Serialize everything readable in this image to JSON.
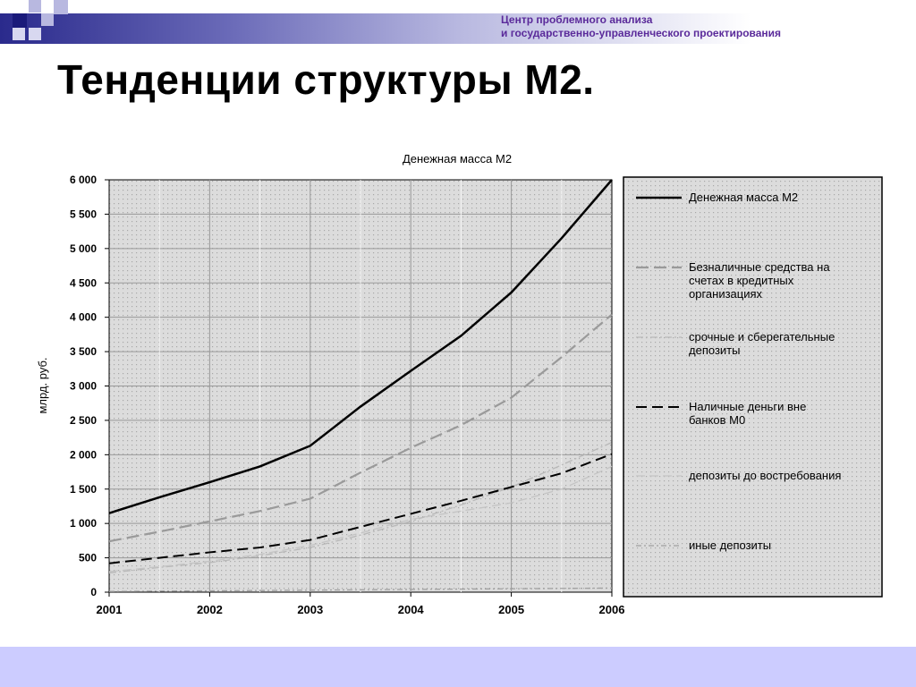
{
  "header": {
    "org_line1": "Центр проблемного анализа",
    "org_line2": "и государственно-управленческого проектирования"
  },
  "slide_title": "Тенденции структуры М2.",
  "colors": {
    "accent": "#2a2a8c",
    "footer": "#ccccff",
    "org_text": "#5a2a9a"
  },
  "chart_data": {
    "type": "line",
    "title": "Денежная масса М2",
    "ylabel": "млрд. руб.",
    "xlabel": "",
    "x": [
      2001,
      2001.5,
      2002,
      2002.5,
      2003,
      2003.5,
      2004,
      2004.5,
      2005,
      2005.5,
      2006
    ],
    "xticks": [
      "2001",
      "2002",
      "2003",
      "2004",
      "2005",
      "2006"
    ],
    "yticks": [
      "0",
      "500",
      "1 000",
      "1 500",
      "2 000",
      "2 500",
      "3 000",
      "3 500",
      "4 000",
      "4 500",
      "5 000",
      "5 500",
      "6 000"
    ],
    "ylim": [
      0,
      6000
    ],
    "grid": true,
    "legend_position": "right",
    "series": [
      {
        "name": "Денежная масса М2",
        "values": [
          1150,
          1380,
          1600,
          1830,
          2130,
          2700,
          3220,
          3730,
          4360,
          5150,
          6000
        ]
      },
      {
        "name": "Безналичные средства на счетах в кредитных организациях",
        "values": [
          740,
          880,
          1030,
          1180,
          1360,
          1740,
          2100,
          2430,
          2830,
          3420,
          4040
        ]
      },
      {
        "name": "срочные и сберегательные депозиты",
        "values": [
          280,
          360,
          430,
          530,
          650,
          830,
          1030,
          1270,
          1530,
          1850,
          2180
        ]
      },
      {
        "name": "Наличные деньги вне банков М0",
        "values": [
          420,
          500,
          580,
          650,
          760,
          950,
          1140,
          1330,
          1530,
          1730,
          2010
        ]
      },
      {
        "name": "депозиты до востребования",
        "values": [
          300,
          370,
          450,
          550,
          680,
          860,
          1060,
          1180,
          1300,
          1500,
          1830
        ]
      },
      {
        "name": "иные депозиты",
        "values": [
          10,
          15,
          20,
          25,
          30,
          35,
          40,
          45,
          50,
          55,
          60
        ]
      }
    ]
  }
}
